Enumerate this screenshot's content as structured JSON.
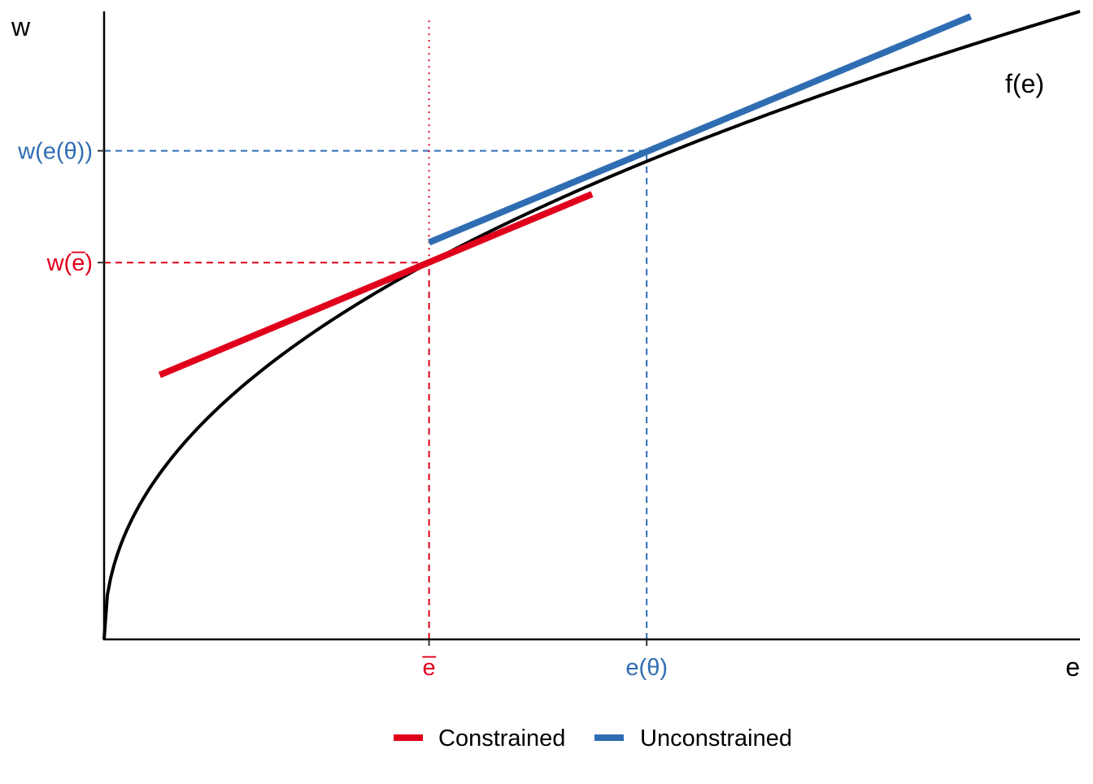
{
  "chart_data": {
    "type": "line",
    "title": "",
    "xlabel": "e",
    "ylabel": "w",
    "xlim": [
      0,
      1
    ],
    "ylim": [
      0,
      1
    ],
    "curve": {
      "label": "f(e)",
      "color": "#000000",
      "x": [
        0,
        0.02,
        0.05,
        0.1,
        0.15,
        0.2,
        0.25,
        0.3,
        0.333,
        0.4,
        0.45,
        0.5,
        0.556,
        0.6,
        0.7,
        0.8,
        0.9,
        1.0
      ],
      "y": [
        0,
        0.089,
        0.2,
        0.343,
        0.451,
        0.535,
        0.601,
        0.654,
        0.6,
        0.737,
        0.768,
        0.796,
        0.778,
        0.839,
        0.874,
        0.905,
        0.932,
        0.998
      ]
    },
    "tangents": [
      {
        "name": "Constrained",
        "color": "#e0001b",
        "x": [
          0.057,
          0.5
        ],
        "y": [
          0.421,
          0.709
        ]
      },
      {
        "name": "Unconstrained",
        "color": "#2f6db3",
        "x": [
          0.333,
          0.888
        ],
        "y": [
          0.632,
          0.992
        ]
      }
    ],
    "reference_points": [
      {
        "x": 0.333,
        "y": 0.6,
        "x_tick_label": "e̅",
        "y_tick_label": "w(e̅)",
        "color": "#e0001b"
      },
      {
        "x": 0.556,
        "y": 0.778,
        "x_tick_label": "e(θ)",
        "y_tick_label": "w(e(θ))",
        "color": "#2f6db3"
      }
    ],
    "annotation": {
      "text": "f(e)",
      "x": 0.89,
      "y": 0.86
    },
    "legend": {
      "position": "bottom",
      "entries": [
        "Constrained",
        "Unconstrained"
      ]
    },
    "grid": false
  }
}
